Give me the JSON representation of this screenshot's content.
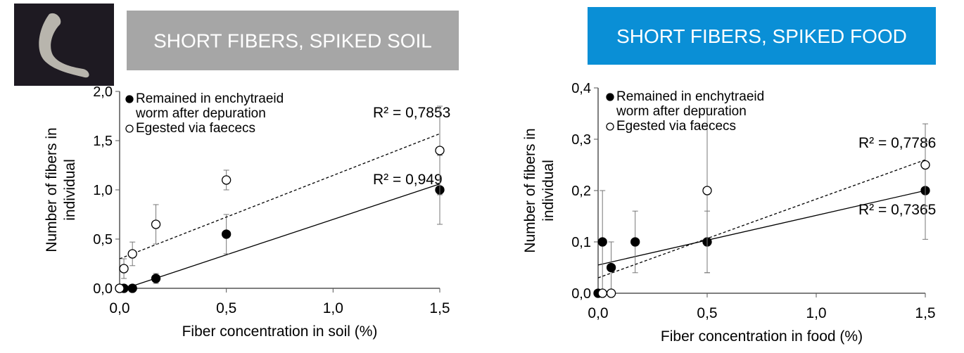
{
  "chart_data": [
    {
      "type": "scatter",
      "title": "SHORT FIBERS, SPIKED SOIL",
      "title_color": "#a6a6a6",
      "x_label": "Fiber concentration in soil (%)",
      "y_label": [
        "Number of fibers in",
        "individual"
      ],
      "xlim": [
        0,
        1.5
      ],
      "xticks": [
        {
          "value": 0,
          "label": "0,0"
        },
        {
          "value": 0.5,
          "label": "0,5"
        },
        {
          "value": 1,
          "label": "1,0"
        },
        {
          "value": 1.5,
          "label": "1,5"
        }
      ],
      "ylim": [
        0,
        2
      ],
      "yticks": [
        {
          "value": 0,
          "label": "0,0"
        },
        {
          "value": 0.5,
          "label": "0,5"
        },
        {
          "value": 1,
          "label": "1,0"
        },
        {
          "value": 1.5,
          "label": "1,5"
        },
        {
          "value": 2,
          "label": "2,0"
        }
      ],
      "series": [
        {
          "name": "Remained in enchytraeid worm after depuration",
          "color": "#000000",
          "marker": "filled",
          "x": [
            0,
            0.02,
            0.06,
            0.17,
            0.5,
            1.5
          ],
          "values": [
            0,
            0,
            0,
            0.1,
            0.55,
            1.0
          ],
          "errors": [
            null,
            null,
            null,
            0.05,
            0.2,
            0.35
          ],
          "trend": {
            "x": [
              0,
              1.5
            ],
            "y": [
              -0.02,
              1.06
            ],
            "dashed": false,
            "label": "R² = 0,949"
          }
        },
        {
          "name": "Egested via faececs",
          "color": "#000000",
          "marker": "open",
          "x": [
            0,
            0.02,
            0.06,
            0.17,
            0.5,
            1.5
          ],
          "values": [
            0,
            0.2,
            0.35,
            0.65,
            1.1,
            1.4
          ],
          "errors": [
            null,
            0.1,
            0.12,
            0.2,
            0.1,
            0.45
          ],
          "trend": {
            "x": [
              0,
              1.5
            ],
            "y": [
              0.3,
              1.57
            ],
            "dashed": true,
            "label": "R² = 0,7853"
          }
        }
      ]
    },
    {
      "type": "scatter",
      "title": "SHORT FIBERS, SPIKED FOOD",
      "title_color": "#0a8fd6",
      "x_label": "Fiber concentration in food (%)",
      "y_label": [
        "Number of fibers in",
        "individual"
      ],
      "xlim": [
        0,
        1.5
      ],
      "xticks": [
        {
          "value": 0,
          "label": "0,0"
        },
        {
          "value": 0.5,
          "label": "0,5"
        },
        {
          "value": 1,
          "label": "1,0"
        },
        {
          "value": 1.5,
          "label": "1,5"
        }
      ],
      "ylim": [
        0,
        0.4
      ],
      "yticks": [
        {
          "value": 0,
          "label": "0,0"
        },
        {
          "value": 0.1,
          "label": "0,1"
        },
        {
          "value": 0.2,
          "label": "0,2"
        },
        {
          "value": 0.3,
          "label": "0,3"
        },
        {
          "value": 0.4,
          "label": "0,4"
        }
      ],
      "series": [
        {
          "name": "Remained in enchytraeid worm after depuration",
          "color": "#000000",
          "marker": "filled",
          "x": [
            0,
            0.02,
            0.06,
            0.17,
            0.5,
            1.5
          ],
          "values": [
            0,
            0.1,
            0.05,
            0.1,
            0.1,
            0.2
          ],
          "errors": [
            null,
            0.1,
            0.05,
            0.06,
            0.06,
            0.095
          ],
          "trend": {
            "x": [
              0,
              1.5
            ],
            "y": [
              0.055,
              0.2
            ],
            "dashed": false,
            "label": "R² = 0,7365"
          }
        },
        {
          "name": "Egested via faececs",
          "color": "#000000",
          "marker": "open",
          "x": [
            0.02,
            0.06,
            0.5,
            1.5
          ],
          "values": [
            0,
            0,
            0.2,
            0.25
          ],
          "errors": [
            null,
            null,
            0.16,
            0.08
          ],
          "trend": {
            "x": [
              0,
              1.5
            ],
            "y": [
              0.03,
              0.26
            ],
            "dashed": true,
            "label": "R² = 0,7786"
          }
        }
      ]
    }
  ]
}
